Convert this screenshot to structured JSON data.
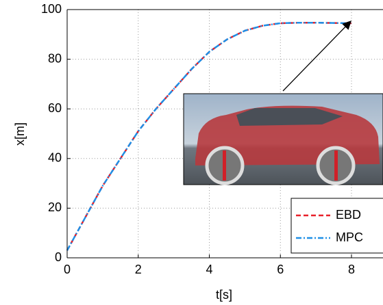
{
  "chart_data": {
    "type": "line",
    "x_label": "t[s]",
    "y_label": "x[m]",
    "x": [
      0,
      0.5,
      1,
      1.5,
      2,
      2.5,
      3,
      3.5,
      4,
      4.5,
      5,
      5.5,
      6,
      6.5,
      7,
      7.5,
      8
    ],
    "series": [
      {
        "name": "EBD",
        "color": "#e8202a",
        "dash": "7,4",
        "values": [
          3,
          16,
          29,
          40,
          51,
          60,
          68,
          76,
          83,
          88,
          91.5,
          93.5,
          94.5,
          94.7,
          94.7,
          94.6,
          94.5
        ]
      },
      {
        "name": "MPC",
        "color": "#1f8fe6",
        "dash": "8,3,2,3",
        "values": [
          3,
          16,
          29,
          40,
          51,
          60,
          68,
          76,
          83,
          88,
          91.5,
          93.5,
          94.5,
          94.7,
          94.7,
          94.6,
          94.5
        ]
      }
    ],
    "xlim": [
      0,
      8.8
    ],
    "xticks": [
      0,
      2,
      4,
      6,
      8
    ],
    "ylim": [
      0,
      100
    ],
    "yticks": [
      0,
      20,
      40,
      60,
      80,
      100
    ],
    "grid": true
  }
}
